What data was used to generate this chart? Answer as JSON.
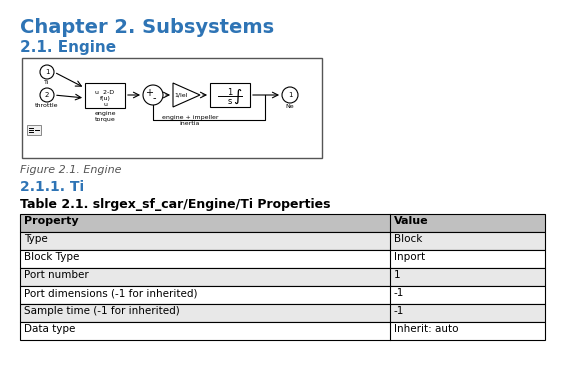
{
  "chapter_title": "Chapter 2. Subsystems",
  "section_title": "2.1. Engine",
  "figure_caption": "Figure 2.1. Engine",
  "subsection_title": "2.1.1. Ti",
  "table_title": "Table 2.1. slrgex_sf_car/Engine/Ti Properties",
  "table_headers": [
    "Property",
    "Value"
  ],
  "table_rows": [
    [
      "Type",
      "Block"
    ],
    [
      "Block Type",
      "Inport"
    ],
    [
      "Port number",
      "1"
    ],
    [
      "Port dimensions (-1 for inherited)",
      "-1"
    ],
    [
      "Sample time (-1 for inherited)",
      "-1"
    ],
    [
      "Data type",
      "Inherit: auto"
    ]
  ],
  "heading_color": "#2E74B5",
  "bg_color": "#ffffff",
  "table_header_bg": "#C0C0C0",
  "table_row_bg_alt": "#E8E8E8",
  "table_border_color": "#000000",
  "diagram_border_color": "#000000",
  "diagram_bg": "#ffffff"
}
